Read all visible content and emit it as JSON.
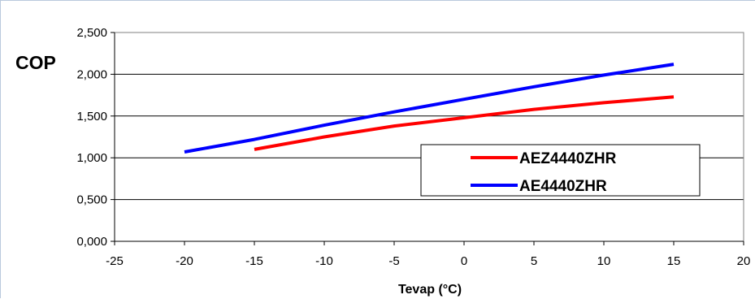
{
  "chart_data": {
    "type": "line",
    "title": "",
    "xlabel": "Tevap (°C)",
    "ylabel": "COP",
    "xlim": [
      -25,
      20
    ],
    "ylim": [
      0,
      2.5
    ],
    "xticks": [
      -25,
      -20,
      -15,
      -10,
      -5,
      0,
      5,
      10,
      15,
      20
    ],
    "yticks": [
      0,
      0.5,
      1.0,
      1.5,
      2.0,
      2.5
    ],
    "xtick_labels": [
      "-25",
      "-20",
      "-15",
      "-10",
      "-5",
      "0",
      "5",
      "10",
      "15",
      "20"
    ],
    "ytick_labels": [
      "0,000",
      "0,500",
      "1,000",
      "1,500",
      "2,000",
      "2,500"
    ],
    "grid": "horizontal",
    "legend_position": "lower-right",
    "series": [
      {
        "name": "AEZ4440ZHR",
        "color": "#ff0000",
        "x": [
          -15,
          -10,
          -5,
          0,
          5,
          10,
          15
        ],
        "y": [
          1.1,
          1.25,
          1.38,
          1.48,
          1.58,
          1.66,
          1.73
        ]
      },
      {
        "name": "AE4440ZHR",
        "color": "#0000ff",
        "x": [
          -20,
          -15,
          -10,
          -5,
          0,
          5,
          10,
          15
        ],
        "y": [
          1.07,
          1.22,
          1.39,
          1.55,
          1.7,
          1.85,
          1.99,
          2.12
        ]
      }
    ]
  }
}
